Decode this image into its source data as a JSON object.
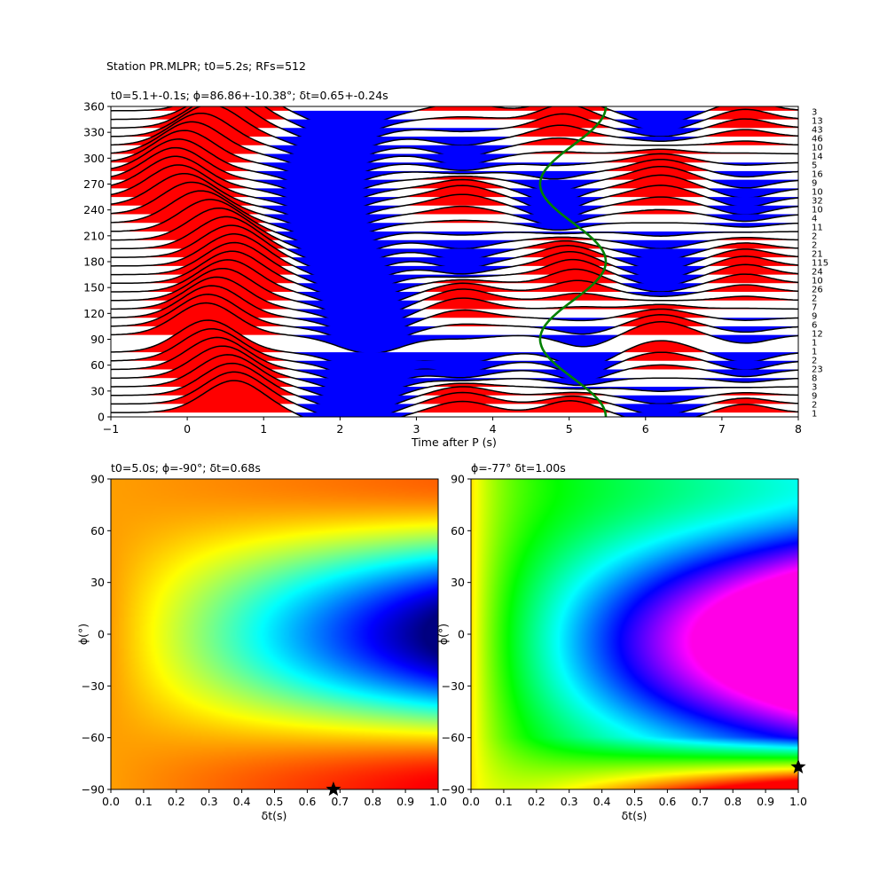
{
  "suptitle": "Station PR.MLPR; t0=5.2s; RFs=512",
  "chart_data": [
    {
      "type": "line",
      "title": "t0=5.1+-0.1s; ϕ=86.86+-10.38°; δt=0.65+-0.24s",
      "xlabel": "Time after P (s)",
      "ylabel": "",
      "xlim": [
        -1,
        8
      ],
      "ylim": [
        0,
        360
      ],
      "xticks": [
        "−1",
        "0",
        "1",
        "2",
        "3",
        "4",
        "5",
        "6",
        "7",
        "8"
      ],
      "yticks": [
        "0",
        "30",
        "60",
        "90",
        "120",
        "150",
        "180",
        "210",
        "240",
        "270",
        "300",
        "330",
        "360"
      ],
      "backazimuths": [
        5,
        15,
        25,
        35,
        45,
        55,
        65,
        75,
        95,
        105,
        115,
        125,
        135,
        145,
        155,
        165,
        175,
        185,
        195,
        205,
        215,
        225,
        235,
        245,
        255,
        265,
        275,
        285,
        295,
        305,
        315,
        325,
        335,
        345,
        355
      ],
      "counts": [
        "1",
        "2",
        "9",
        "3",
        "8",
        "23",
        "2",
        "1",
        "1",
        "12",
        "6",
        "9",
        "7",
        "2",
        "26",
        "10",
        "24",
        "115",
        "21",
        "2",
        "2",
        "11",
        "4",
        "10",
        "32",
        "10",
        "9",
        "16",
        "5",
        "14",
        "10",
        "46",
        "43",
        "13",
        "3"
      ],
      "green_curve": {
        "t_mean": 5.05,
        "amplitude": 0.43,
        "period_deg": 180,
        "peak_baz": 0
      },
      "colors": {
        "positive": "#ff0000",
        "negative": "#0000ff",
        "trace": "#000000",
        "curve": "#008000"
      }
    },
    {
      "type": "heatmap",
      "title": "t0=5.0s; ϕ=-90°; δt=0.68s",
      "xlabel": "δt(s)",
      "ylabel": "ϕ(°)",
      "xlim": [
        0,
        1
      ],
      "ylim": [
        -90,
        90
      ],
      "xticks": [
        "0.0",
        "0.1",
        "0.2",
        "0.3",
        "0.4",
        "0.5",
        "0.6",
        "0.7",
        "0.8",
        "0.9",
        "1.0"
      ],
      "yticks": [
        "−90",
        "−60",
        "−30",
        "0",
        "30",
        "60",
        "90"
      ],
      "colormap": "jet",
      "best": {
        "dt": 0.68,
        "phi": -90
      }
    },
    {
      "type": "heatmap",
      "title": "ϕ=-77° δt=1.00s",
      "xlabel": "δt(s)",
      "ylabel": "ϕ(°)",
      "xlim": [
        0,
        1
      ],
      "ylim": [
        -90,
        90
      ],
      "xticks": [
        "0.0",
        "0.1",
        "0.2",
        "0.3",
        "0.4",
        "0.5",
        "0.6",
        "0.7",
        "0.8",
        "0.9",
        "1.0"
      ],
      "yticks": [
        "−90",
        "−60",
        "−30",
        "0",
        "30",
        "60",
        "90"
      ],
      "colormap": "hsv",
      "best": {
        "dt": 1.0,
        "phi": -77
      }
    }
  ]
}
